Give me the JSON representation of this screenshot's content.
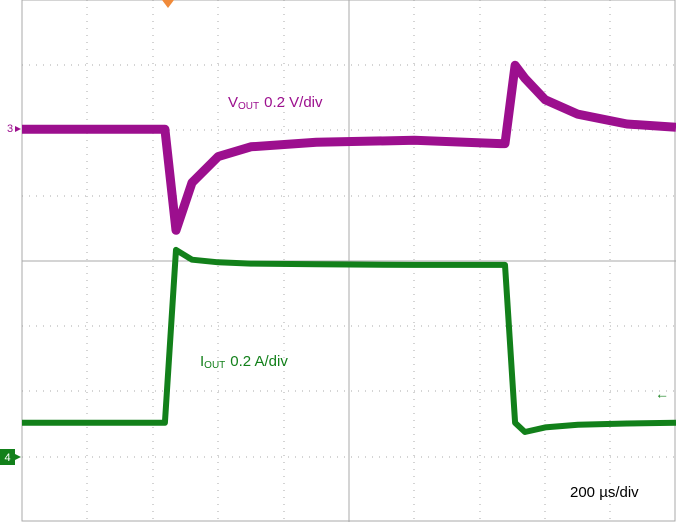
{
  "chart_data": {
    "type": "line",
    "x": [
      0,
      437,
      471,
      520,
      600,
      700,
      900,
      1200,
      1462,
      1477,
      1508,
      1538,
      1600,
      1700,
      1850,
      2000
    ],
    "xlim": [
      0,
      2000
    ],
    "ylim": [
      -4,
      4
    ],
    "series": [
      {
        "color": "#9c0f8e",
        "values": [
          2.02,
          2.02,
          0.47,
          1.2,
          1.6,
          1.75,
          1.82,
          1.85,
          1.8,
          1.8,
          3.0,
          2.8,
          2.47,
          2.25,
          2.1,
          2.05
        ]
      },
      {
        "color": "#12801a",
        "values": [
          -2.48,
          -2.48,
          0.17,
          0.02,
          -0.02,
          -0.04,
          -0.05,
          -0.06,
          -0.06,
          -0.06,
          -2.48,
          -2.62,
          -2.55,
          -2.51,
          -2.49,
          -2.48
        ]
      }
    ],
    "annotations": {
      "vout": {
        "symbol": "V",
        "subscript": "OUT",
        "scale": "0.2 V/div"
      },
      "iout": {
        "symbol": "I",
        "subscript": "OUT",
        "scale": "0.2 A/div"
      },
      "timebase": "200 µs/div"
    },
    "channels": [
      "3",
      "4"
    ]
  }
}
